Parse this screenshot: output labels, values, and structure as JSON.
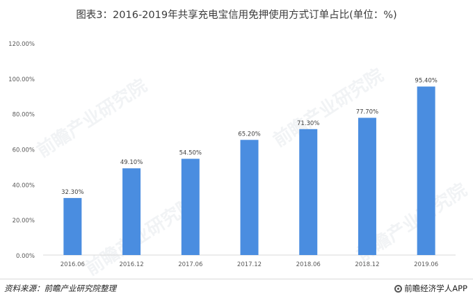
{
  "title": "图表3：2016-2019年共享充电宝信用免押使用方式订单占比(单位：%)",
  "source": "资料来源：前瞻产业研究院整理",
  "brand": "前瞻经济学人APP",
  "watermark": "前瞻产业研究院",
  "colors": {
    "bar": "#4a8de0",
    "axis": "#d9d9d9",
    "label": "#595959"
  },
  "chart_data": {
    "type": "bar",
    "categories": [
      "2016.06",
      "2016.12",
      "2017.06",
      "2017.12",
      "2018.06",
      "2018.12",
      "2019.06"
    ],
    "values": [
      32.3,
      49.1,
      54.5,
      65.2,
      71.3,
      77.7,
      95.4
    ],
    "value_labels": [
      "32.30%",
      "49.10%",
      "54.50%",
      "65.20%",
      "71.30%",
      "77.70%",
      "95.40%"
    ],
    "yticks": [
      "0.00%",
      "20.00%",
      "40.00%",
      "60.00%",
      "80.00%",
      "100.00%",
      "120.00%"
    ],
    "ylim": [
      0,
      120
    ],
    "grid": false,
    "legend": "none"
  }
}
